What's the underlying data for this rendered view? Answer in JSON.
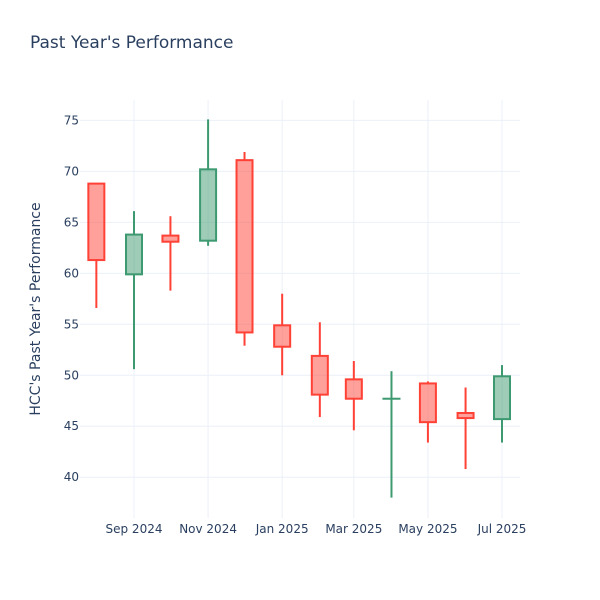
{
  "chart_data": {
    "type": "candlestick",
    "title": "Past Year's Performance",
    "xlabel": "",
    "ylabel": "HCC's Past Year's Performance",
    "ylim": [
      36.0,
      77.0
    ],
    "grid": true,
    "legend": "none",
    "x_ticks": [
      {
        "date": "2024-09-01",
        "label": "Sep 2024"
      },
      {
        "date": "2024-11-01",
        "label": "Nov 2024"
      },
      {
        "date": "2025-01-01",
        "label": "Jan 2025"
      },
      {
        "date": "2025-03-01",
        "label": "Mar 2025"
      },
      {
        "date": "2025-05-01",
        "label": "May 2025"
      },
      {
        "date": "2025-07-01",
        "label": "Jul 2025"
      }
    ],
    "y_ticks": [
      40,
      45,
      50,
      55,
      60,
      65,
      70,
      75
    ],
    "colors": {
      "increasing": "#3d9970",
      "decreasing": "#ff4136",
      "grid": "#ebf0f8",
      "text": "#2a3f5f"
    },
    "series": [
      {
        "date": "2024-08-01",
        "open": 68.8,
        "high": 68.8,
        "low": 56.6,
        "close": 61.3
      },
      {
        "date": "2024-09-01",
        "open": 59.9,
        "high": 66.1,
        "low": 50.6,
        "close": 63.8
      },
      {
        "date": "2024-10-01",
        "open": 63.7,
        "high": 65.6,
        "low": 58.3,
        "close": 63.1
      },
      {
        "date": "2024-11-01",
        "open": 63.2,
        "high": 75.1,
        "low": 62.7,
        "close": 70.2
      },
      {
        "date": "2024-12-01",
        "open": 71.1,
        "high": 71.9,
        "low": 52.9,
        "close": 54.2
      },
      {
        "date": "2025-01-01",
        "open": 54.9,
        "high": 58.0,
        "low": 50.0,
        "close": 52.8
      },
      {
        "date": "2025-02-01",
        "open": 51.9,
        "high": 55.2,
        "low": 45.9,
        "close": 48.1
      },
      {
        "date": "2025-03-01",
        "open": 49.6,
        "high": 51.4,
        "low": 44.6,
        "close": 47.7
      },
      {
        "date": "2025-04-01",
        "open": 47.7,
        "high": 50.4,
        "low": 38.0,
        "close": 47.7
      },
      {
        "date": "2025-05-01",
        "open": 49.2,
        "high": 49.4,
        "low": 43.4,
        "close": 45.4
      },
      {
        "date": "2025-06-01",
        "open": 46.3,
        "high": 48.8,
        "low": 40.8,
        "close": 45.8
      },
      {
        "date": "2025-07-01",
        "open": 45.7,
        "high": 51.0,
        "low": 43.4,
        "close": 49.9
      }
    ]
  }
}
